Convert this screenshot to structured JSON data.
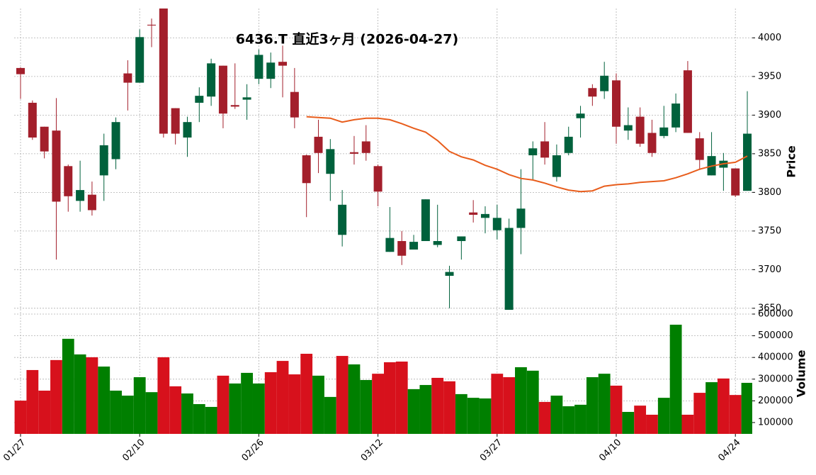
{
  "chart_data": {
    "type": "candlestick",
    "title": "6436.T  直近3ヶ月  (2026-04-27)",
    "ylabel": "Price",
    "categories": [
      "01/27",
      null,
      null,
      null,
      null,
      null,
      null,
      null,
      null,
      null,
      "02/10",
      null,
      null,
      null,
      null,
      null,
      null,
      null,
      null,
      null,
      "02/26",
      null,
      null,
      null,
      null,
      null,
      null,
      null,
      null,
      null,
      "03/12",
      null,
      null,
      null,
      null,
      null,
      null,
      null,
      null,
      null,
      "03/27",
      null,
      null,
      null,
      null,
      null,
      null,
      null,
      null,
      null,
      "04/10",
      null,
      null,
      null,
      null,
      null,
      null,
      null,
      null,
      null,
      "04/24",
      null
    ],
    "open": [
      3961,
      3916,
      3885,
      3880,
      3834,
      3789,
      3797,
      3822,
      3843,
      3954,
      3942,
      4017,
      4038,
      3909,
      3871,
      3916,
      3924,
      3964,
      3913,
      3920,
      3947,
      3947,
      3969,
      3930,
      3848,
      3872,
      3824,
      3745,
      3852,
      3866,
      3834,
      3723,
      3737,
      3726,
      3737,
      3732,
      3692,
      3737,
      3774,
      3767,
      3751,
      3648,
      3754,
      3848,
      3866,
      3820,
      3851,
      3896,
      3935,
      3931,
      3945,
      3880,
      3898,
      3877,
      3873,
      3884,
      3958,
      3870,
      3822,
      3832,
      3831,
      3802
    ],
    "high": [
      3962,
      3919,
      3885,
      3922,
      3836,
      3841,
      3814,
      3876,
      3897,
      3971,
      4011,
      4025,
      4040,
      3909,
      3898,
      3936,
      3973,
      3964,
      3967,
      3940,
      3985,
      3981,
      3990,
      3961,
      3849,
      3894,
      3869,
      3803,
      3873,
      3887,
      3836,
      3781,
      3750,
      3745,
      3791,
      3784,
      3705,
      3743,
      3790,
      3782,
      3784,
      3766,
      3830,
      3866,
      3891,
      3862,
      3885,
      3912,
      3940,
      3969,
      3954,
      3910,
      3910,
      3894,
      3912,
      3928,
      3970,
      3878,
      3878,
      3851,
      3831,
      3931
    ],
    "low": [
      3921,
      3868,
      3844,
      3713,
      3775,
      3775,
      3770,
      3789,
      3830,
      3906,
      3942,
      3988,
      3871,
      3862,
      3846,
      3891,
      3912,
      3883,
      3908,
      3894,
      3940,
      3935,
      3923,
      3883,
      3768,
      3825,
      3789,
      3730,
      3836,
      3841,
      3782,
      3723,
      3706,
      3726,
      3737,
      3729,
      3650,
      3713,
      3761,
      3747,
      3739,
      3640,
      3720,
      3816,
      3836,
      3814,
      3848,
      3871,
      3912,
      3921,
      3863,
      3868,
      3859,
      3846,
      3870,
      3878,
      3877,
      3829,
      3822,
      3802,
      3794,
      3802
    ],
    "close": [
      3953,
      3871,
      3853,
      3788,
      3795,
      3803,
      3777,
      3861,
      3891,
      3942,
      4001,
      4016,
      3876,
      3876,
      3891,
      3925,
      3967,
      3902,
      3911,
      3923,
      3978,
      3968,
      3964,
      3897,
      3812,
      3851,
      3856,
      3784,
      3850,
      3851,
      3801,
      3741,
      3718,
      3736,
      3791,
      3737,
      3697,
      3743,
      3771,
      3772,
      3767,
      3754,
      3779,
      3857,
      3845,
      3848,
      3872,
      3902,
      3924,
      3951,
      3885,
      3887,
      3863,
      3851,
      3884,
      3915,
      3877,
      3842,
      3847,
      3841,
      3796,
      3876
    ],
    "up_color": "#00613c",
    "down_color": "#a31f2b",
    "ylim": [
      3648,
      4038
    ],
    "yticks": [
      3650,
      3700,
      3750,
      3800,
      3850,
      3900,
      3950,
      4000
    ],
    "grid": true,
    "moving_average": {
      "color": "#e85d1c",
      "values": [
        null,
        null,
        null,
        null,
        null,
        null,
        null,
        null,
        null,
        null,
        null,
        null,
        null,
        null,
        null,
        null,
        null,
        null,
        null,
        null,
        null,
        null,
        null,
        null,
        3898,
        3897,
        3896,
        3891,
        3894,
        3896,
        3896,
        3894,
        3889,
        3883,
        3878,
        3867,
        3853,
        3846,
        3842,
        3835,
        3830,
        3823,
        3818,
        3816,
        3812,
        3807,
        3803,
        3801,
        3802,
        3808,
        3810,
        3811,
        3813,
        3814,
        3815,
        3819,
        3824,
        3830,
        3834,
        3837,
        3839,
        3847
      ]
    },
    "volume": {
      "ylabel": "Volume",
      "values": [
        201000,
        342000,
        247000,
        388000,
        486000,
        414000,
        401000,
        358000,
        247000,
        224000,
        309000,
        240000,
        401000,
        267000,
        234000,
        185000,
        172000,
        316000,
        280000,
        329000,
        280000,
        332000,
        384000,
        322000,
        417000,
        316000,
        218000,
        407000,
        368000,
        296000,
        325000,
        378000,
        381000,
        254000,
        273000,
        306000,
        290000,
        231000,
        214000,
        211000,
        325000,
        309000,
        355000,
        339000,
        195000,
        224000,
        175000,
        182000,
        309000,
        325000,
        270000,
        149000,
        178000,
        136000,
        214000,
        551000,
        136000,
        237000,
        286000,
        303000,
        227000,
        283000
      ],
      "colors": [
        "#d7111c",
        "#d7111c",
        "#d7111c",
        "#d7111c",
        "#007f00",
        "#007f00",
        "#d7111c",
        "#007f00",
        "#007f00",
        "#007f00",
        "#007f00",
        "#007f00",
        "#d7111c",
        "#d7111c",
        "#007f00",
        "#007f00",
        "#007f00",
        "#d7111c",
        "#007f00",
        "#007f00",
        "#007f00",
        "#d7111c",
        "#d7111c",
        "#d7111c",
        "#d7111c",
        "#007f00",
        "#007f00",
        "#d7111c",
        "#007f00",
        "#007f00",
        "#d7111c",
        "#d7111c",
        "#d7111c",
        "#007f00",
        "#007f00",
        "#d7111c",
        "#d7111c",
        "#007f00",
        "#007f00",
        "#007f00",
        "#d7111c",
        "#d7111c",
        "#007f00",
        "#007f00",
        "#d7111c",
        "#007f00",
        "#007f00",
        "#007f00",
        "#007f00",
        "#007f00",
        "#d7111c",
        "#007f00",
        "#d7111c",
        "#d7111c",
        "#007f00",
        "#007f00",
        "#d7111c",
        "#d7111c",
        "#007f00",
        "#d7111c",
        "#d7111c",
        "#007f00"
      ],
      "ylim": [
        47700,
        619600
      ],
      "yticks": [
        100000,
        200000,
        300000,
        400000,
        500000,
        600000
      ]
    }
  }
}
